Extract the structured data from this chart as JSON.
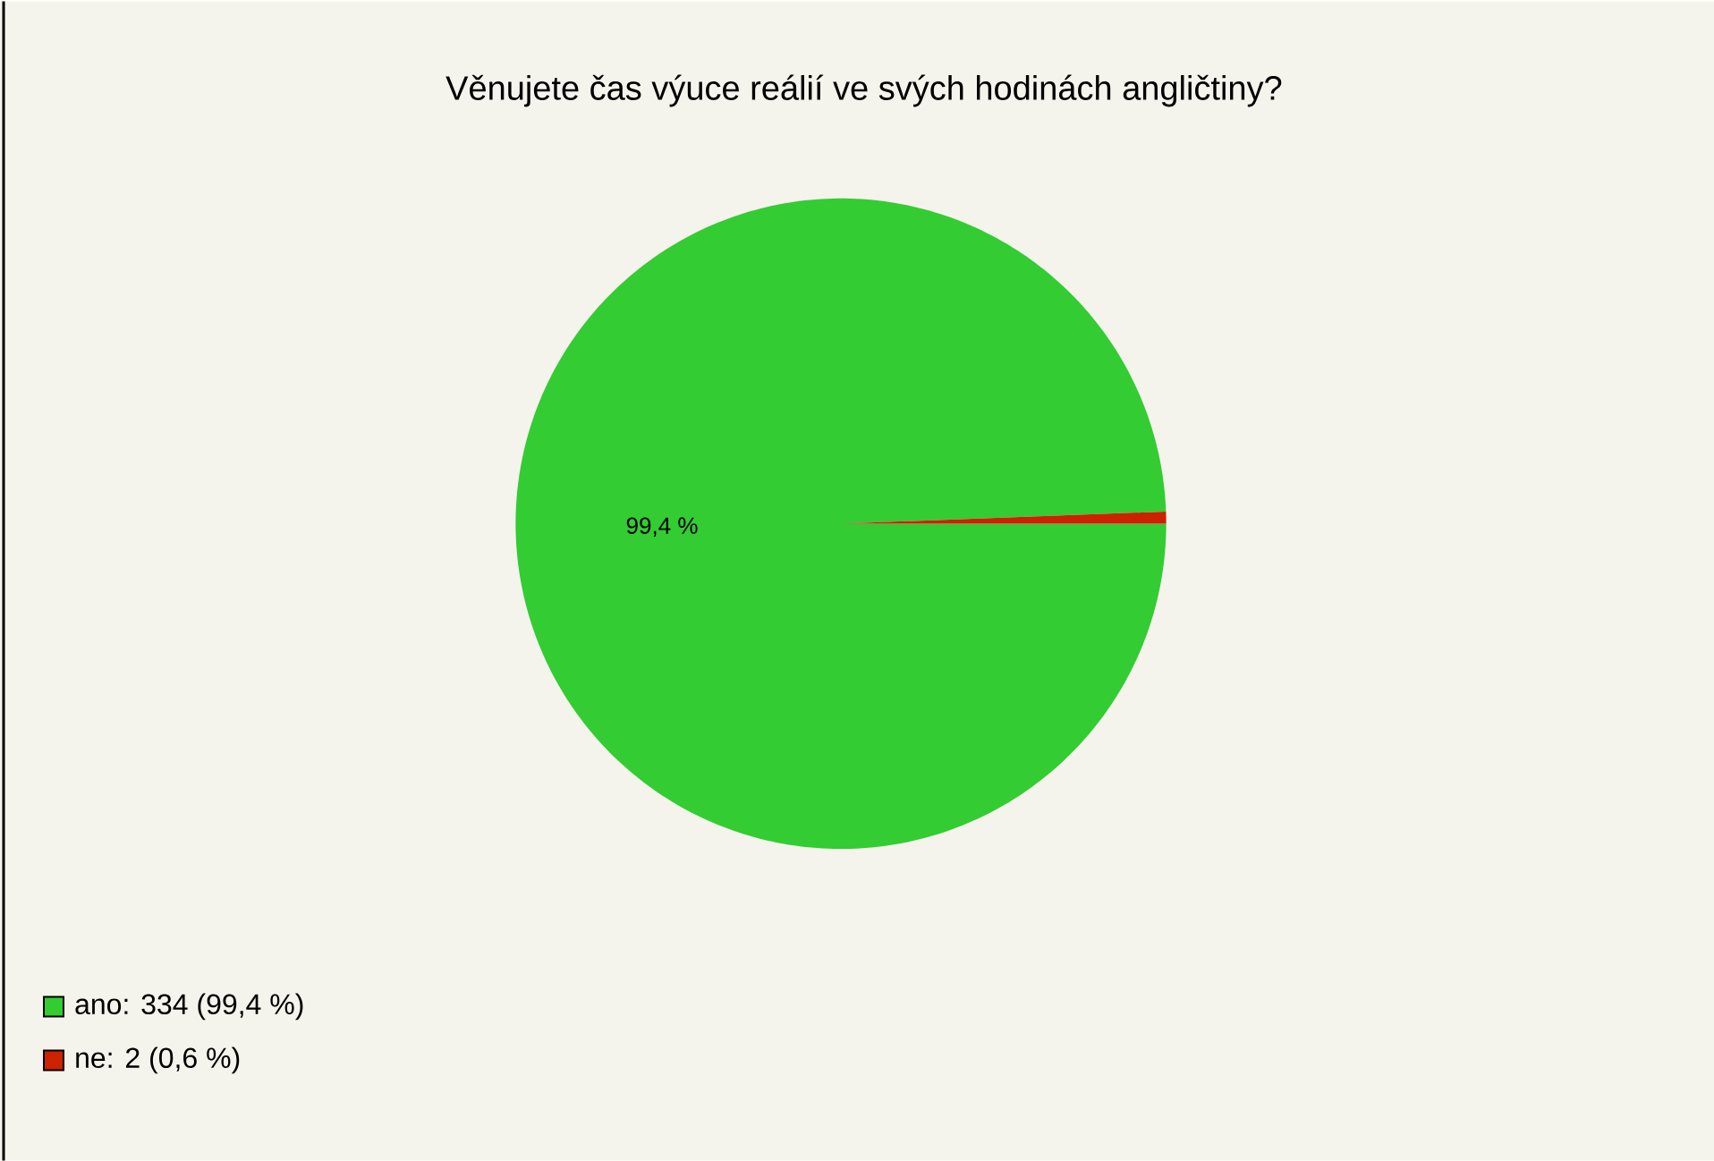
{
  "chart_data": {
    "type": "pie",
    "title": "Věnujete čas výuce reálií ve svých hodinách angličtiny?",
    "categories": [
      "ano: 334 (99,4 %)",
      "ne: 2 (0,6 %)"
    ],
    "values": [
      334,
      2
    ],
    "colors": [
      "#33cc33",
      "#cc2200"
    ],
    "annotations": [
      "99,4 %"
    ],
    "legend": "bottom left"
  }
}
